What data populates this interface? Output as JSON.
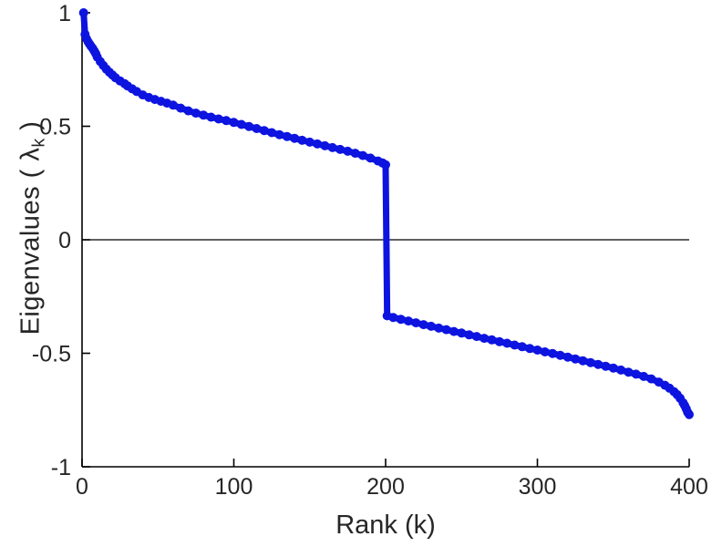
{
  "labels": {
    "ylabel_prefix": "Eigenvalues ( ",
    "ylabel_lambda": "λ",
    "ylabel_sub": "k",
    "ylabel_suffix": " )",
    "xlabel": "Rank (k)"
  },
  "colors": {
    "line": "#0d14e0",
    "axis": "#000000",
    "zero_line": "#000000",
    "tick_label": "#262626"
  },
  "chart_data": {
    "type": "line",
    "title": "",
    "xlabel": "Rank (k)",
    "ylabel": "Eigenvalues ( λ_k )",
    "xlim": [
      0,
      400
    ],
    "ylim": [
      -1,
      1
    ],
    "grid": false,
    "legend": false,
    "zero_line": true,
    "x_tick_values": [
      0,
      100,
      200,
      300,
      400
    ],
    "x_tick_labels": [
      "0",
      "100",
      "200",
      "300",
      "400"
    ],
    "y_tick_values": [
      -1,
      -0.5,
      0,
      0.5,
      1
    ],
    "y_tick_labels": [
      "-1",
      "-0.5",
      "0",
      "0.5",
      "1"
    ],
    "series": [
      {
        "name": "sorted-eigenvalues",
        "marker": "dot",
        "points": [
          [
            1,
            1.0
          ],
          [
            2,
            0.905
          ],
          [
            3,
            0.885
          ],
          [
            4,
            0.872
          ],
          [
            5,
            0.862
          ],
          [
            6,
            0.852
          ],
          [
            7,
            0.843
          ],
          [
            8,
            0.832
          ],
          [
            9,
            0.82
          ],
          [
            10,
            0.805
          ],
          [
            12,
            0.785
          ],
          [
            14,
            0.768
          ],
          [
            16,
            0.752
          ],
          [
            18,
            0.738
          ],
          [
            20,
            0.726
          ],
          [
            22,
            0.714
          ],
          [
            25,
            0.7
          ],
          [
            28,
            0.688
          ],
          [
            30,
            0.678
          ],
          [
            33,
            0.665
          ],
          [
            36,
            0.653
          ],
          [
            40,
            0.638
          ],
          [
            44,
            0.627
          ],
          [
            48,
            0.618
          ],
          [
            52,
            0.61
          ],
          [
            56,
            0.602
          ],
          [
            60,
            0.593
          ],
          [
            65,
            0.58
          ],
          [
            70,
            0.568
          ],
          [
            75,
            0.558
          ],
          [
            80,
            0.549
          ],
          [
            85,
            0.54
          ],
          [
            90,
            0.532
          ],
          [
            95,
            0.525
          ],
          [
            100,
            0.517
          ],
          [
            105,
            0.508
          ],
          [
            110,
            0.499
          ],
          [
            115,
            0.49
          ],
          [
            120,
            0.481
          ],
          [
            125,
            0.472
          ],
          [
            130,
            0.463
          ],
          [
            135,
            0.455
          ],
          [
            140,
            0.447
          ],
          [
            145,
            0.438
          ],
          [
            150,
            0.43
          ],
          [
            155,
            0.422
          ],
          [
            160,
            0.414
          ],
          [
            165,
            0.406
          ],
          [
            170,
            0.398
          ],
          [
            175,
            0.39
          ],
          [
            180,
            0.381
          ],
          [
            185,
            0.371
          ],
          [
            190,
            0.36
          ],
          [
            195,
            0.347
          ],
          [
            198,
            0.338
          ],
          [
            200,
            0.33
          ],
          [
            201,
            -0.335
          ],
          [
            205,
            -0.342
          ],
          [
            210,
            -0.35
          ],
          [
            215,
            -0.358
          ],
          [
            220,
            -0.366
          ],
          [
            225,
            -0.374
          ],
          [
            230,
            -0.381
          ],
          [
            235,
            -0.389
          ],
          [
            240,
            -0.396
          ],
          [
            245,
            -0.404
          ],
          [
            250,
            -0.411
          ],
          [
            255,
            -0.419
          ],
          [
            260,
            -0.426
          ],
          [
            265,
            -0.434
          ],
          [
            270,
            -0.441
          ],
          [
            275,
            -0.449
          ],
          [
            280,
            -0.456
          ],
          [
            285,
            -0.464
          ],
          [
            290,
            -0.471
          ],
          [
            295,
            -0.479
          ],
          [
            300,
            -0.486
          ],
          [
            305,
            -0.494
          ],
          [
            310,
            -0.501
          ],
          [
            315,
            -0.509
          ],
          [
            320,
            -0.517
          ],
          [
            325,
            -0.525
          ],
          [
            330,
            -0.533
          ],
          [
            335,
            -0.541
          ],
          [
            340,
            -0.549
          ],
          [
            345,
            -0.557
          ],
          [
            350,
            -0.565
          ],
          [
            355,
            -0.574
          ],
          [
            360,
            -0.583
          ],
          [
            365,
            -0.592
          ],
          [
            370,
            -0.602
          ],
          [
            375,
            -0.613
          ],
          [
            380,
            -0.627
          ],
          [
            384,
            -0.641
          ],
          [
            387,
            -0.654
          ],
          [
            390,
            -0.669
          ],
          [
            392,
            -0.682
          ],
          [
            394,
            -0.698
          ],
          [
            396,
            -0.718
          ],
          [
            397,
            -0.73
          ],
          [
            398,
            -0.744
          ],
          [
            399,
            -0.76
          ],
          [
            400,
            -0.77
          ]
        ]
      }
    ]
  }
}
